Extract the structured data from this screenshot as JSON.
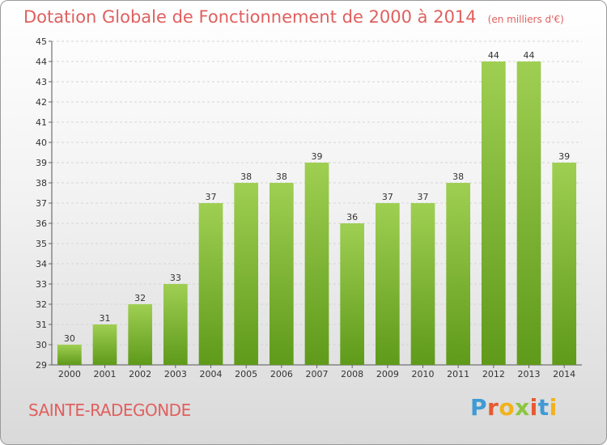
{
  "page": {
    "title": "Dotation Globale de Fonctionnement de 2000 à 2014",
    "unit": "(en milliers d'€)",
    "commune": "SAINTE-RADEGONDE",
    "brand": {
      "letters": [
        "P",
        "r",
        "o",
        "x",
        "i",
        "t",
        "i"
      ],
      "colors": [
        "#3f9ad6",
        "#e8592f",
        "#f2b21b",
        "#8cc63f",
        "#e8592f",
        "#3f9ad6",
        "#f2b21b"
      ]
    }
  },
  "colors": {
    "title": "#e0605f",
    "bar_light": "#9fcf52",
    "bar_dark": "#5f9a1a"
  },
  "chart_data": {
    "type": "bar",
    "categories": [
      "2000",
      "2001",
      "2002",
      "2003",
      "2004",
      "2005",
      "2006",
      "2007",
      "2008",
      "2009",
      "2010",
      "2011",
      "2012",
      "2013",
      "2014"
    ],
    "values": [
      30,
      31,
      32,
      33,
      37,
      38,
      38,
      39,
      36,
      37,
      37,
      38,
      44,
      44,
      39
    ],
    "ylim": [
      29,
      45
    ],
    "yticks": [
      29,
      30,
      31,
      32,
      33,
      34,
      35,
      36,
      37,
      38,
      39,
      40,
      41,
      42,
      43,
      44,
      45
    ],
    "grid": true,
    "legend": "none"
  }
}
